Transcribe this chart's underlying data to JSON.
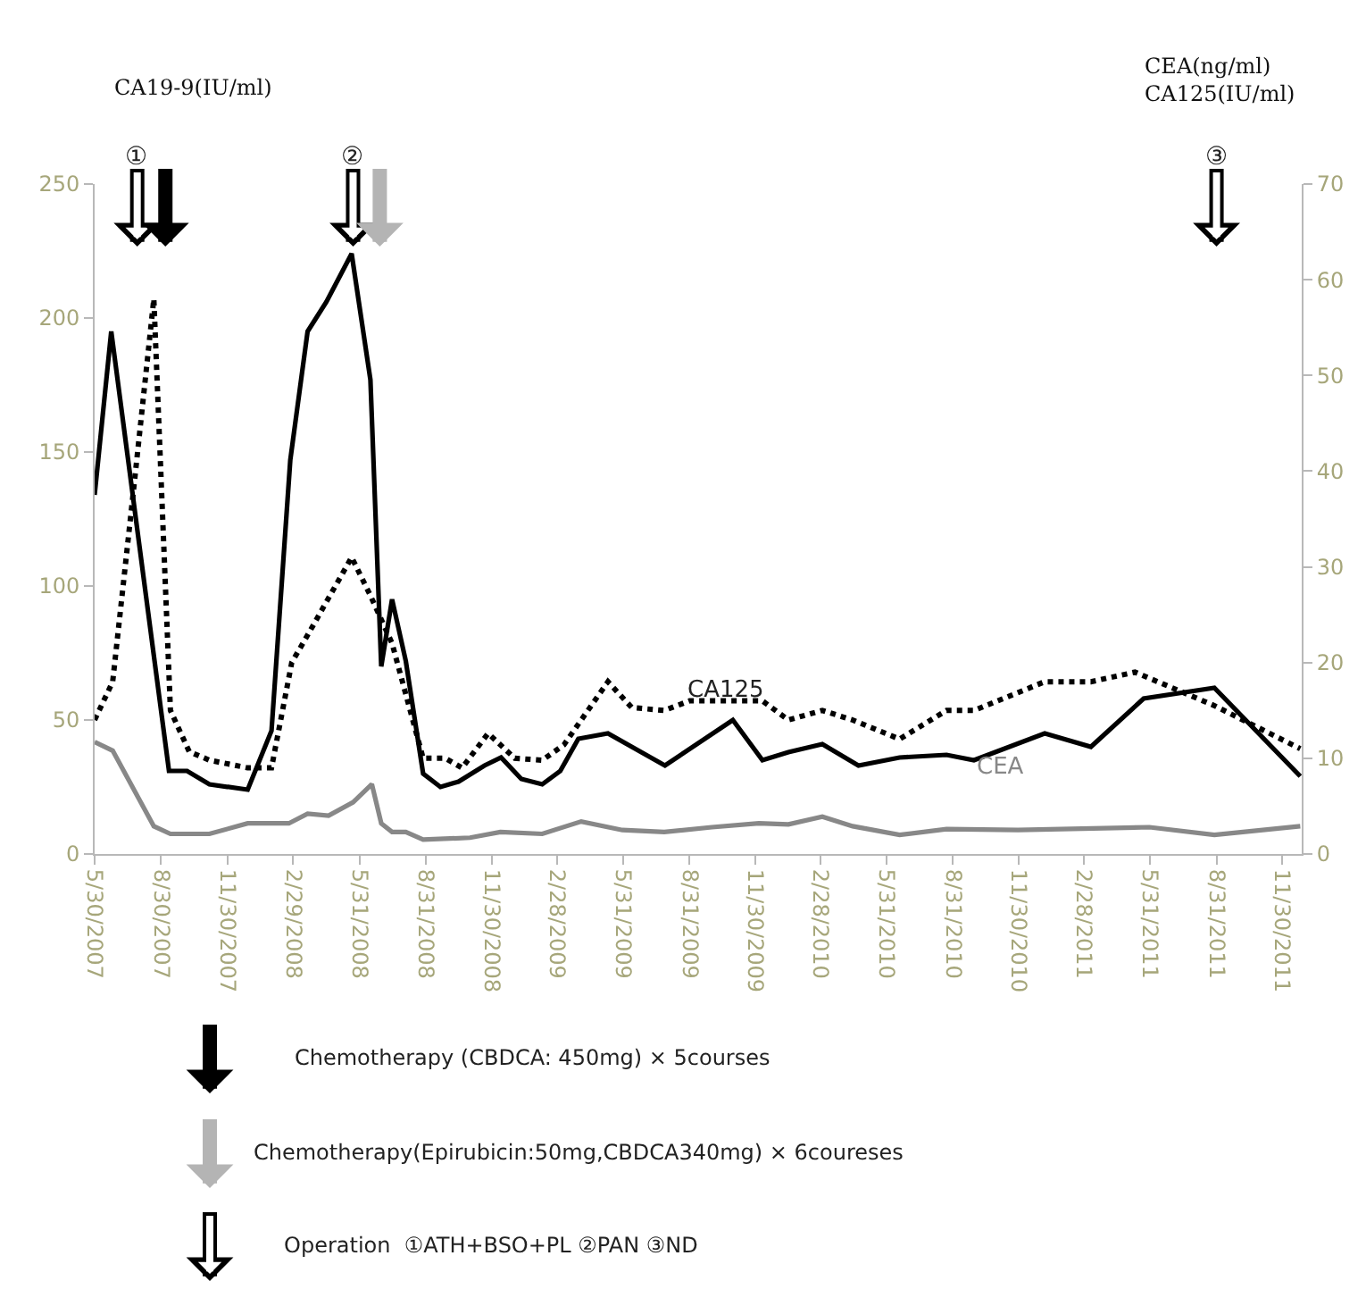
{
  "chart_data": {
    "type": "line",
    "ylabel": "CA19-9(IU/ml)",
    "y2label": "CEA(ng/ml)\nCA125(IU/ml)",
    "xlim": [
      "2007-05-30",
      "2011-12-27"
    ],
    "xticks": [
      {
        "value": "2007-05-30",
        "label": "5/30/2007"
      },
      {
        "value": "2007-08-30",
        "label": "8/30/2007"
      },
      {
        "value": "2007-11-30",
        "label": "11/30/2007"
      },
      {
        "value": "2008-02-29",
        "label": "2/29/2008"
      },
      {
        "value": "2008-05-31",
        "label": "5/31/2008"
      },
      {
        "value": "2008-08-31",
        "label": "8/31/2008"
      },
      {
        "value": "2008-11-30",
        "label": "11/30/2008"
      },
      {
        "value": "2009-02-28",
        "label": "2/28/2009"
      },
      {
        "value": "2009-05-31",
        "label": "5/31/2009"
      },
      {
        "value": "2009-08-31",
        "label": "8/31/2009"
      },
      {
        "value": "2009-11-30",
        "label": "11/30/2009"
      },
      {
        "value": "2010-02-28",
        "label": "2/28/2010"
      },
      {
        "value": "2010-05-31",
        "label": "5/31/2010"
      },
      {
        "value": "2010-08-31",
        "label": "8/31/2010"
      },
      {
        "value": "2010-11-30",
        "label": "11/30/2010"
      },
      {
        "value": "2011-02-28",
        "label": "2/28/2011"
      },
      {
        "value": "2011-05-31",
        "label": "5/31/2011"
      },
      {
        "value": "2011-08-31",
        "label": "8/31/2011"
      },
      {
        "value": "2011-11-30",
        "label": "11/30/2011"
      }
    ],
    "ylim": [
      0,
      250
    ],
    "yticks": [
      0,
      50,
      100,
      150,
      200,
      250
    ],
    "y2lim": [
      0,
      70
    ],
    "y2ticks": [
      0,
      10,
      20,
      30,
      40,
      50,
      60,
      70
    ],
    "legend": false,
    "marker": "none",
    "series": [
      {
        "color": "#000000",
        "line_style": "solid",
        "x": [
          "2007-05-30",
          "2007-06-22",
          "2007-09-10",
          "2007-10-05",
          "2007-11-05",
          "2007-12-28",
          "2008-01-30",
          "2008-02-25",
          "2008-03-20",
          "2008-04-15",
          "2008-05-20",
          "2008-06-15",
          "2008-06-30",
          "2008-07-15",
          "2008-08-03",
          "2008-08-27",
          "2008-09-20",
          "2008-10-15",
          "2008-11-20",
          "2008-12-13",
          "2009-01-10",
          "2009-02-08",
          "2009-03-05",
          "2009-03-30",
          "2009-05-10",
          "2009-07-28",
          "2009-10-30",
          "2009-12-10",
          "2010-01-15",
          "2010-03-03",
          "2010-04-22",
          "2010-06-18",
          "2010-08-22",
          "2010-09-29",
          "2011-01-05",
          "2011-03-10",
          "2011-05-22",
          "2011-08-28",
          "2011-12-25"
        ],
        "values": [
          134,
          195,
          31,
          31,
          26,
          24,
          46,
          147,
          195,
          206,
          224,
          177,
          70,
          95,
          72,
          30,
          25,
          27,
          33,
          36,
          28,
          26,
          31,
          43,
          45,
          33,
          50,
          35,
          38,
          41,
          33,
          36,
          37,
          35,
          45,
          40,
          58,
          62,
          29
        ]
      },
      {
        "name": "CA125",
        "color": "#000000",
        "line_style": "dotted",
        "axis": "y2",
        "x": [
          "2007-05-30",
          "2007-06-24",
          "2007-07-25",
          "2007-08-20",
          "2007-09-12",
          "2007-10-08",
          "2007-11-05",
          "2007-12-28",
          "2008-01-30",
          "2008-02-27",
          "2008-03-21",
          "2008-05-20",
          "2008-06-15",
          "2008-07-15",
          "2008-08-27",
          "2008-09-27",
          "2008-10-20",
          "2008-11-25",
          "2009-01-01",
          "2009-02-08",
          "2009-03-10",
          "2009-05-10",
          "2009-06-12",
          "2009-07-27",
          "2009-08-31",
          "2009-12-10",
          "2010-01-15",
          "2010-03-03",
          "2010-04-14",
          "2010-06-18",
          "2010-08-22",
          "2010-09-29",
          "2011-01-05",
          "2011-03-10",
          "2011-05-10",
          "2011-08-28",
          "2011-12-25"
        ],
        "values": [
          14,
          18,
          39.5,
          58,
          15,
          10.7,
          9.8,
          9,
          9,
          20,
          23,
          31,
          27,
          22,
          10,
          10,
          9,
          12.6,
          10,
          9.8,
          11.4,
          18,
          15.3,
          15,
          16,
          16,
          14,
          15,
          14,
          12,
          15,
          15,
          18,
          18,
          19,
          15.5,
          11
        ]
      },
      {
        "name": "CEA",
        "color": "#888888",
        "line_style": "solid",
        "axis": "y2",
        "x": [
          "2007-05-30",
          "2007-06-24",
          "2007-08-20",
          "2007-09-12",
          "2007-11-05",
          "2007-12-28",
          "2008-02-23",
          "2008-03-20",
          "2008-04-18",
          "2008-05-22",
          "2008-06-17",
          "2008-06-30",
          "2008-07-15",
          "2008-08-03",
          "2008-08-27",
          "2008-10-31",
          "2008-12-12",
          "2009-02-08",
          "2009-04-03",
          "2009-05-30",
          "2009-07-27",
          "2009-10-01",
          "2009-12-05",
          "2010-01-15",
          "2010-03-03",
          "2010-04-14",
          "2010-06-18",
          "2010-08-22",
          "2010-11-29",
          "2011-05-30",
          "2011-08-28",
          "2011-12-25"
        ],
        "values": [
          11.7,
          10.8,
          2.9,
          2.1,
          2.1,
          3.2,
          3.2,
          4.2,
          4,
          5.4,
          7.3,
          3.2,
          2.3,
          2.3,
          1.5,
          1.7,
          2.3,
          2.1,
          3.4,
          2.5,
          2.3,
          2.8,
          3.2,
          3.1,
          3.9,
          2.9,
          2,
          2.6,
          2.5,
          2.8,
          2,
          2.9
        ]
      }
    ],
    "ref_lines": [
      {
        "axis": "x",
        "value": "2007-07-28",
        "label": "①",
        "color": "#ffffff"
      },
      {
        "axis": "x",
        "value": "2007-09-05",
        "color": "#000000"
      },
      {
        "axis": "x",
        "value": "2008-05-22",
        "label": "②",
        "color": "#ffffff"
      },
      {
        "axis": "x",
        "value": "2008-06-28",
        "color": "#b4b4b4"
      },
      {
        "axis": "x",
        "value": "2011-08-31",
        "label": "③",
        "color": "#ffffff"
      }
    ],
    "annotations": [
      "Chemotherapy (CBDCA: 450mg) × 5courses",
      "Chemotherapy(Epirubicin:50mg,CBDCA340mg) × 6coureses",
      "Operation  ①ATH+BSO+PL ②PAN ③ND"
    ]
  }
}
